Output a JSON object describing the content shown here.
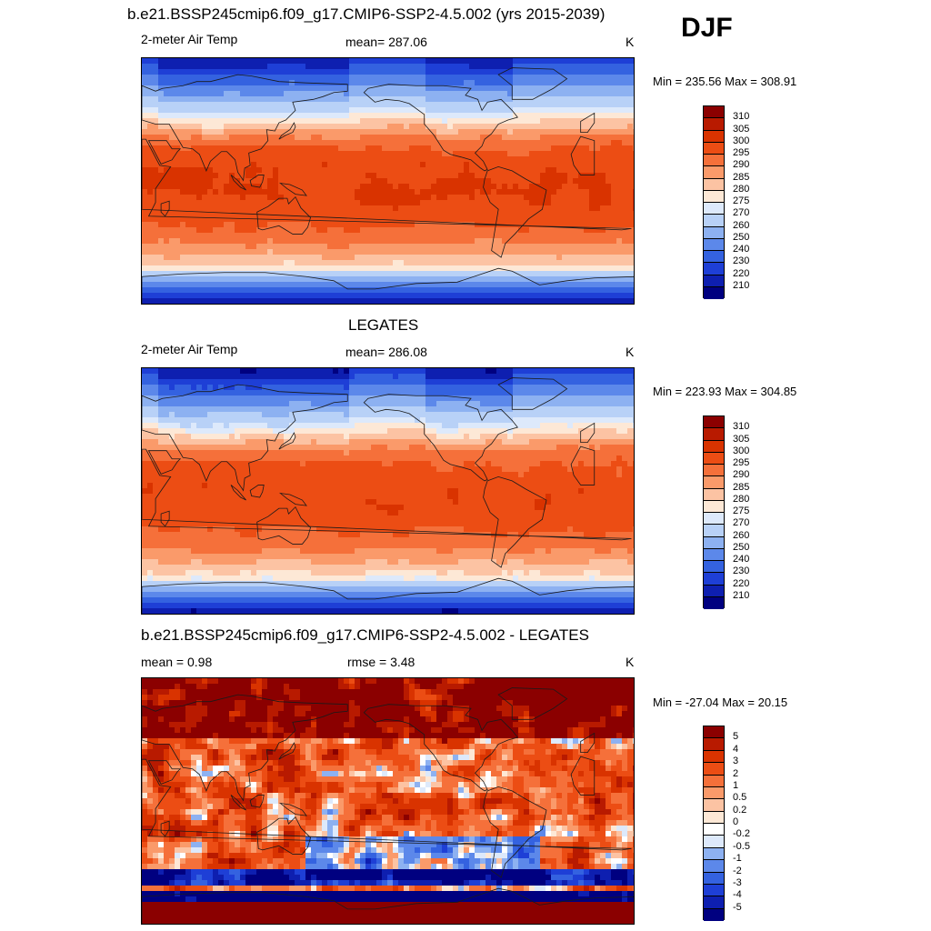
{
  "season": "DJF",
  "chart_data": [
    {
      "type": "heatmap",
      "title": "b.e21.BSSP245cmip6.f09_g17.CMIP6-SSP2-4.5.002 (yrs 2015-2039)",
      "left_label": "2-meter Air Temp",
      "center_label": "mean= 287.06",
      "right_label": "K",
      "minmax_label": "Min = 235.56 Max = 308.91",
      "min": 235.56,
      "max": 308.91,
      "mean": 287.06,
      "levels": [
        "310",
        "305",
        "300",
        "295",
        "290",
        "285",
        "280",
        "275",
        "270",
        "260",
        "250",
        "240",
        "230",
        "220",
        "210"
      ],
      "colors": [
        "#8b0000",
        "#b81a00",
        "#d93300",
        "#ec4d14",
        "#f5703a",
        "#fa9a6a",
        "#fcc3a3",
        "#fde8d6",
        "#dde9fb",
        "#b8d1f7",
        "#8db1f1",
        "#5c88ea",
        "#3462e0",
        "#1e3fd6",
        "#0e1fb0",
        "#000080"
      ]
    },
    {
      "type": "heatmap",
      "title": "LEGATES",
      "left_label": "2-meter Air Temp",
      "center_label": "mean= 286.08",
      "right_label": "K",
      "minmax_label": "Min = 223.93 Max = 304.85",
      "min": 223.93,
      "max": 304.85,
      "mean": 286.08,
      "levels": [
        "310",
        "305",
        "300",
        "295",
        "290",
        "285",
        "280",
        "275",
        "270",
        "260",
        "250",
        "240",
        "230",
        "220",
        "210"
      ],
      "colors": [
        "#8b0000",
        "#b81a00",
        "#d93300",
        "#ec4d14",
        "#f5703a",
        "#fa9a6a",
        "#fcc3a3",
        "#fde8d6",
        "#dde9fb",
        "#b8d1f7",
        "#8db1f1",
        "#5c88ea",
        "#3462e0",
        "#1e3fd6",
        "#0e1fb0",
        "#000080"
      ]
    },
    {
      "type": "heatmap",
      "title": "b.e21.BSSP245cmip6.f09_g17.CMIP6-SSP2-4.5.002 - LEGATES",
      "left_label": "mean =   0.98",
      "center_label": "rmse =   3.48",
      "right_label": "K",
      "minmax_label": "Min = -27.04 Max =  20.15",
      "min": -27.04,
      "max": 20.15,
      "mean": 0.98,
      "rmse": 3.48,
      "levels": [
        "5",
        "4",
        "3",
        "2",
        "1",
        "0.5",
        "0.2",
        "0",
        "-0.2",
        "-0.5",
        "-1",
        "-2",
        "-3",
        "-4",
        "-5"
      ],
      "colors": [
        "#8b0000",
        "#b81a00",
        "#d93300",
        "#ec4d14",
        "#f5703a",
        "#fa9a6a",
        "#fcc3a3",
        "#fde8d6",
        "#ffffff",
        "#dde9fb",
        "#8db1f1",
        "#5c88ea",
        "#3462e0",
        "#1e3fd6",
        "#0e1fb0",
        "#000080"
      ]
    }
  ]
}
